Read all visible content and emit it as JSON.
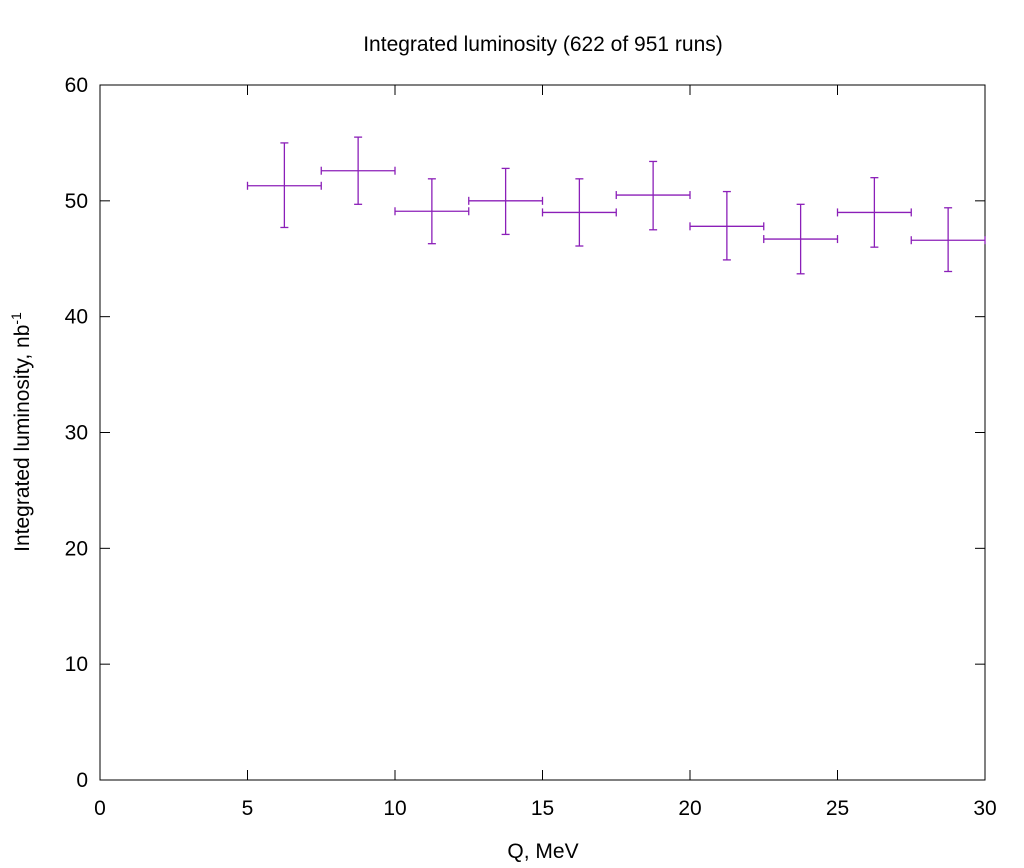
{
  "chart_data": {
    "type": "scatter",
    "title": "Integrated luminosity (622 of 951 runs)",
    "xlabel": "Q, MeV",
    "ylabel_base": "Integrated luminosity, nb",
    "ylabel_sup": "-1",
    "xlim": [
      0,
      30
    ],
    "ylim": [
      0,
      60
    ],
    "xticks": [
      0,
      5,
      10,
      15,
      20,
      25,
      30
    ],
    "yticks": [
      0,
      10,
      20,
      30,
      40,
      50,
      60
    ],
    "grid": false,
    "legend": "none",
    "series_color": "#8b1fb8",
    "points": [
      {
        "x": 6.25,
        "xerr": 1.25,
        "y": 51.3,
        "ylow": 47.7,
        "yhigh": 55.0
      },
      {
        "x": 8.75,
        "xerr": 1.25,
        "y": 52.6,
        "ylow": 49.7,
        "yhigh": 55.5
      },
      {
        "x": 11.25,
        "xerr": 1.25,
        "y": 49.1,
        "ylow": 46.3,
        "yhigh": 51.9
      },
      {
        "x": 13.75,
        "xerr": 1.25,
        "y": 50.0,
        "ylow": 47.1,
        "yhigh": 52.8
      },
      {
        "x": 16.25,
        "xerr": 1.25,
        "y": 49.0,
        "ylow": 46.1,
        "yhigh": 51.9
      },
      {
        "x": 18.75,
        "xerr": 1.25,
        "y": 50.5,
        "ylow": 47.5,
        "yhigh": 53.4
      },
      {
        "x": 21.25,
        "xerr": 1.25,
        "y": 47.8,
        "ylow": 44.9,
        "yhigh": 50.8
      },
      {
        "x": 23.75,
        "xerr": 1.25,
        "y": 46.7,
        "ylow": 43.7,
        "yhigh": 49.7
      },
      {
        "x": 26.25,
        "xerr": 1.25,
        "y": 49.0,
        "ylow": 46.0,
        "yhigh": 52.0
      },
      {
        "x": 28.75,
        "xerr": 1.25,
        "y": 46.6,
        "ylow": 43.9,
        "yhigh": 49.4
      }
    ]
  }
}
